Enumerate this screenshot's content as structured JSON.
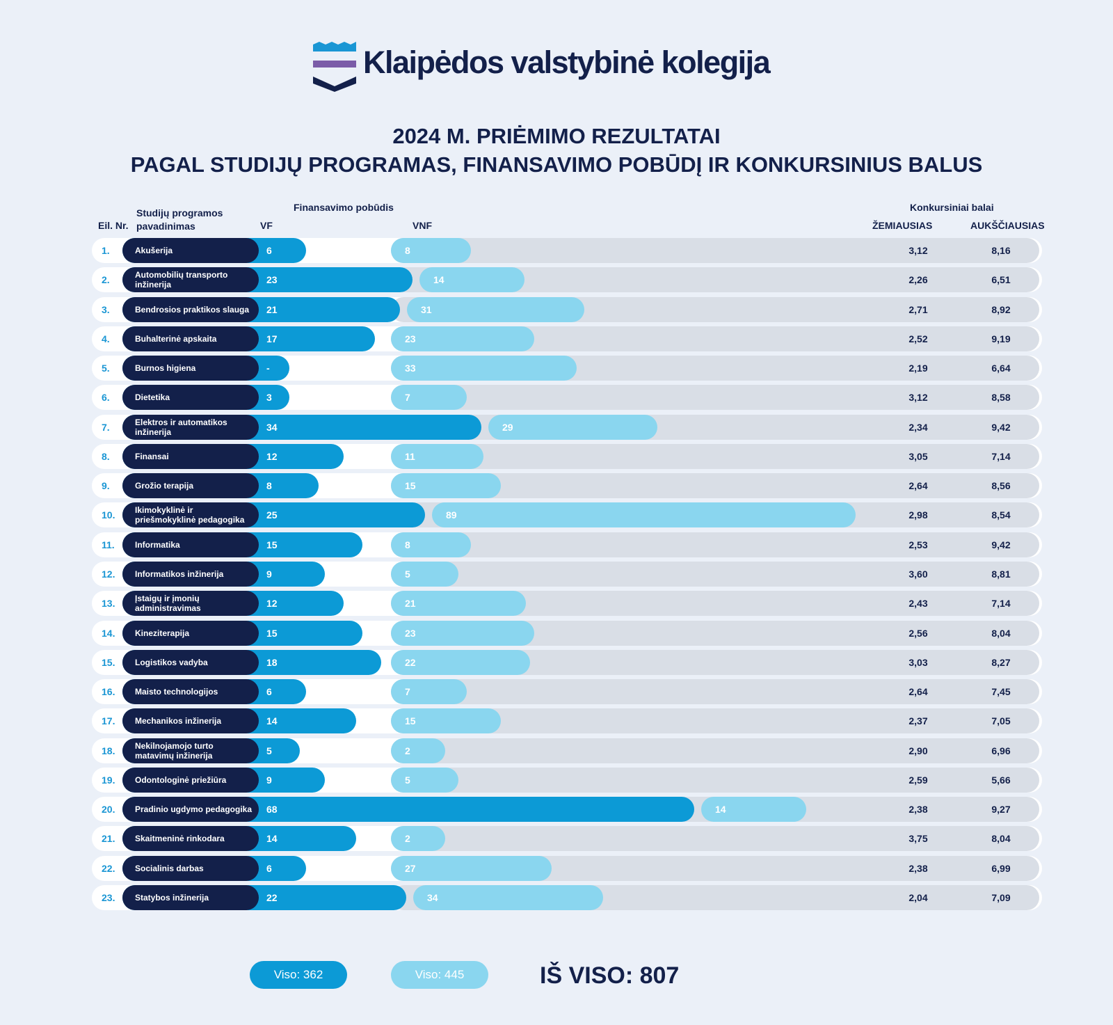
{
  "brand": {
    "name": "Klaipėdos valstybinė kolegija"
  },
  "colors": {
    "navy": "#13204a",
    "vf": "#0c9ad6",
    "vnf": "#8ad6ef",
    "track": "#d9dee6",
    "number": "#1a96d4",
    "background": "#ebf0f8"
  },
  "chart_data": {
    "type": "bar",
    "title": "2024 M. PRIĖMIMO REZULTATAI",
    "subtitle": "PAGAL STUDIJŲ PROGRAMAS, FINANSAVIMO POBŪDĮ IR KONKURSINIUS BALUS",
    "headers": {
      "nr": "Eil. Nr.",
      "program": "Studijų programos pavadinimas",
      "financing": "Finansavimo pobūdis",
      "vf": "VF",
      "vnf": "VNF",
      "scores": "Konkursiniai balai",
      "lowest": "ŽEMIAUSIAS",
      "highest": "AUKŠČIAUSIAS"
    },
    "rows": [
      {
        "nr": "1.",
        "program": "Akušerija",
        "vf": 6,
        "vf_label": "6",
        "vnf": 8,
        "low": "3,12",
        "high": "8,16"
      },
      {
        "nr": "2.",
        "program": "Automobilių transporto inžinerija",
        "vf": 23,
        "vf_label": "23",
        "vnf": 14,
        "low": "2,26",
        "high": "6,51"
      },
      {
        "nr": "3.",
        "program": "Bendrosios praktikos slauga",
        "vf": 21,
        "vf_label": "21",
        "vnf": 31,
        "low": "2,71",
        "high": "8,92"
      },
      {
        "nr": "4.",
        "program": "Buhalterinė apskaita",
        "vf": 17,
        "vf_label": "17",
        "vnf": 23,
        "low": "2,52",
        "high": "9,19"
      },
      {
        "nr": "5.",
        "program": "Burnos higiena",
        "vf": 0,
        "vf_label": "-",
        "vnf": 33,
        "low": "2,19",
        "high": "6,64"
      },
      {
        "nr": "6.",
        "program": "Dietetika",
        "vf": 3,
        "vf_label": "3",
        "vnf": 7,
        "low": "3,12",
        "high": "8,58"
      },
      {
        "nr": "7.",
        "program": "Elektros ir automatikos inžinerija",
        "vf": 34,
        "vf_label": "34",
        "vnf": 29,
        "low": "2,34",
        "high": "9,42"
      },
      {
        "nr": "8.",
        "program": "Finansai",
        "vf": 12,
        "vf_label": "12",
        "vnf": 11,
        "low": "3,05",
        "high": "7,14"
      },
      {
        "nr": "9.",
        "program": "Grožio terapija",
        "vf": 8,
        "vf_label": "8",
        "vnf": 15,
        "low": "2,64",
        "high": "8,56"
      },
      {
        "nr": "10.",
        "program": "Ikimokyklinė ir priešmokyklinė pedagogika",
        "vf": 25,
        "vf_label": "25",
        "vnf": 89,
        "low": "2,98",
        "high": "8,54"
      },
      {
        "nr": "11.",
        "program": "Informatika",
        "vf": 15,
        "vf_label": "15",
        "vnf": 8,
        "low": "2,53",
        "high": "9,42"
      },
      {
        "nr": "12.",
        "program": "Informatikos inžinerija",
        "vf": 9,
        "vf_label": "9",
        "vnf": 5,
        "low": "3,60",
        "high": "8,81"
      },
      {
        "nr": "13.",
        "program": "Įstaigų ir įmonių administravimas",
        "vf": 12,
        "vf_label": "12",
        "vnf": 21,
        "low": "2,43",
        "high": "7,14"
      },
      {
        "nr": "14.",
        "program": "Kineziterapija",
        "vf": 15,
        "vf_label": "15",
        "vnf": 23,
        "low": "2,56",
        "high": "8,04"
      },
      {
        "nr": "15.",
        "program": "Logistikos vadyba",
        "vf": 18,
        "vf_label": "18",
        "vnf": 22,
        "low": "3,03",
        "high": "8,27"
      },
      {
        "nr": "16.",
        "program": "Maisto technologijos",
        "vf": 6,
        "vf_label": "6",
        "vnf": 7,
        "low": "2,64",
        "high": "7,45"
      },
      {
        "nr": "17.",
        "program": "Mechanikos inžinerija",
        "vf": 14,
        "vf_label": "14",
        "vnf": 15,
        "low": "2,37",
        "high": "7,05"
      },
      {
        "nr": "18.",
        "program": "Nekilnojamojo turto matavimų inžinerija",
        "vf": 5,
        "vf_label": "5",
        "vnf": 2,
        "low": "2,90",
        "high": "6,96"
      },
      {
        "nr": "19.",
        "program": "Odontologinė priežiūra",
        "vf": 9,
        "vf_label": "9",
        "vnf": 5,
        "low": "2,59",
        "high": "5,66"
      },
      {
        "nr": "20.",
        "program": "Pradinio ugdymo pedagogika",
        "vf": 68,
        "vf_label": "68",
        "vnf": 14,
        "low": "2,38",
        "high": "9,27"
      },
      {
        "nr": "21.",
        "program": "Skaitmeninė rinkodara",
        "vf": 14,
        "vf_label": "14",
        "vnf": 2,
        "low": "3,75",
        "high": "8,04"
      },
      {
        "nr": "22.",
        "program": "Socialinis darbas",
        "vf": 6,
        "vf_label": "6",
        "vnf": 27,
        "low": "2,38",
        "high": "6,99"
      },
      {
        "nr": "23.",
        "program": "Statybos inžinerija",
        "vf": 22,
        "vf_label": "22",
        "vnf": 34,
        "low": "2,04",
        "high": "7,09"
      }
    ],
    "totals": {
      "vf": "Viso: 362",
      "vnf": "Viso: 445",
      "grand": "IŠ VISO: 807"
    }
  }
}
